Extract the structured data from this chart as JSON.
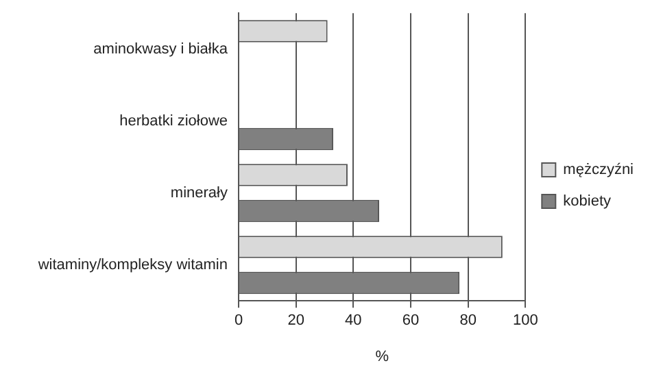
{
  "chart_data": {
    "type": "bar",
    "orientation": "horizontal",
    "xlabel": "%",
    "categories": [
      "aminokwasy i białka",
      "herbatki ziołowe",
      "minerały",
      "witaminy/kompleksy witamin"
    ],
    "series": [
      {
        "name": "mężczyźni",
        "color": "#d9d9d9",
        "values": [
          31,
          null,
          38,
          92
        ]
      },
      {
        "name": "kobiety",
        "color": "#808080",
        "values": [
          null,
          33,
          49,
          77
        ]
      }
    ],
    "xlim": [
      0,
      100
    ],
    "xticks": [
      0,
      20,
      40,
      60,
      80,
      100
    ],
    "grid": "x",
    "legend": "right"
  }
}
